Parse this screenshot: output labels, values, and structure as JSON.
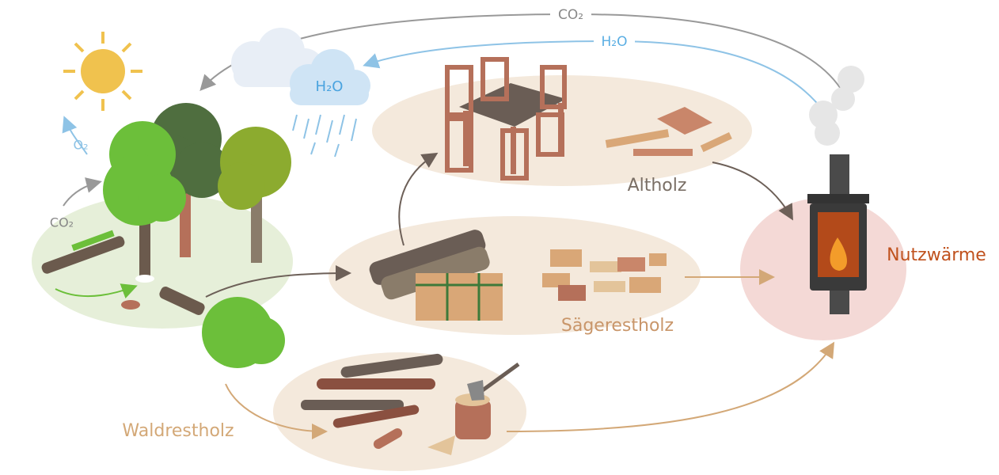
{
  "labels": {
    "co2_top": "CO₂",
    "h2o_arc": "H₂O",
    "h2o_cloud": "H₂O",
    "o2": "O₂",
    "co2_left": "CO₂",
    "altholz": "Altholz",
    "saegerestholz": "Sägerestholz",
    "waldrestholz": "Waldrestholz",
    "nutzwaerme": "Nutzwärme"
  }
}
